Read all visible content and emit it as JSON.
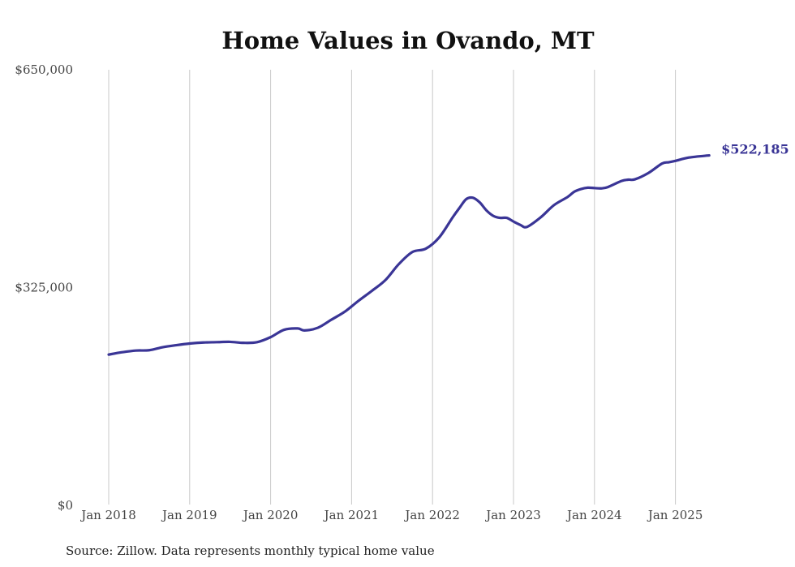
{
  "chart_data": {
    "type": "line",
    "title": "Home Values in Ovando, MT",
    "xlabel": "",
    "ylabel": "",
    "ylim": [
      0,
      650000
    ],
    "y_ticks": [
      0,
      325000,
      650000
    ],
    "y_tick_labels": [
      "$0",
      "$325,000",
      "$650,000"
    ],
    "x_ticks": [
      "2018-01",
      "2019-01",
      "2020-01",
      "2021-01",
      "2022-01",
      "2023-01",
      "2024-01",
      "2025-01"
    ],
    "x_tick_labels": [
      "Jan 2018",
      "Jan 2019",
      "Jan 2020",
      "Jan 2021",
      "Jan 2022",
      "Jan 2023",
      "Jan 2024",
      "Jan 2025"
    ],
    "xlim": [
      "2018-01",
      "2025-06"
    ],
    "grid": "vertical",
    "legend": "none",
    "line_color": "#3a3596",
    "end_label": "$522,185",
    "series": [
      {
        "x": [
          "2018-01",
          "2018-03",
          "2018-05",
          "2018-07",
          "2018-09",
          "2018-11",
          "2019-01",
          "2019-03",
          "2019-05",
          "2019-07",
          "2019-09",
          "2019-11",
          "2020-01",
          "2020-03",
          "2020-05",
          "2020-06",
          "2020-08",
          "2020-10",
          "2020-12",
          "2021-02",
          "2021-04",
          "2021-06",
          "2021-08",
          "2021-10",
          "2021-12",
          "2022-02",
          "2022-04",
          "2022-05",
          "2022-06",
          "2022-07",
          "2022-08",
          "2022-09",
          "2022-10",
          "2022-11",
          "2022-12",
          "2023-01",
          "2023-02",
          "2023-03",
          "2023-05",
          "2023-07",
          "2023-09",
          "2023-10",
          "2023-11",
          "2023-12",
          "2024-01",
          "2024-02",
          "2024-03",
          "2024-05",
          "2024-06",
          "2024-07",
          "2024-09",
          "2024-11",
          "2024-12",
          "2025-01",
          "2025-03",
          "2025-06"
        ],
        "values": [
          225000,
          228500,
          231000,
          231500,
          236000,
          239000,
          241500,
          243000,
          243500,
          244000,
          242500,
          243500,
          251000,
          262000,
          264000,
          261000,
          265000,
          277000,
          289000,
          305000,
          320000,
          336000,
          360000,
          378000,
          383000,
          400000,
          430000,
          444000,
          457000,
          459000,
          452000,
          440000,
          432000,
          429000,
          429000,
          423500,
          418500,
          415500,
          429500,
          448000,
          460000,
          468000,
          472000,
          474000,
          473500,
          473000,
          475000,
          484000,
          486000,
          486500,
          496000,
          510000,
          512000,
          514000,
          519000,
          522185
        ]
      }
    ],
    "source": "Source: Zillow. Data represents monthly typical home value"
  }
}
